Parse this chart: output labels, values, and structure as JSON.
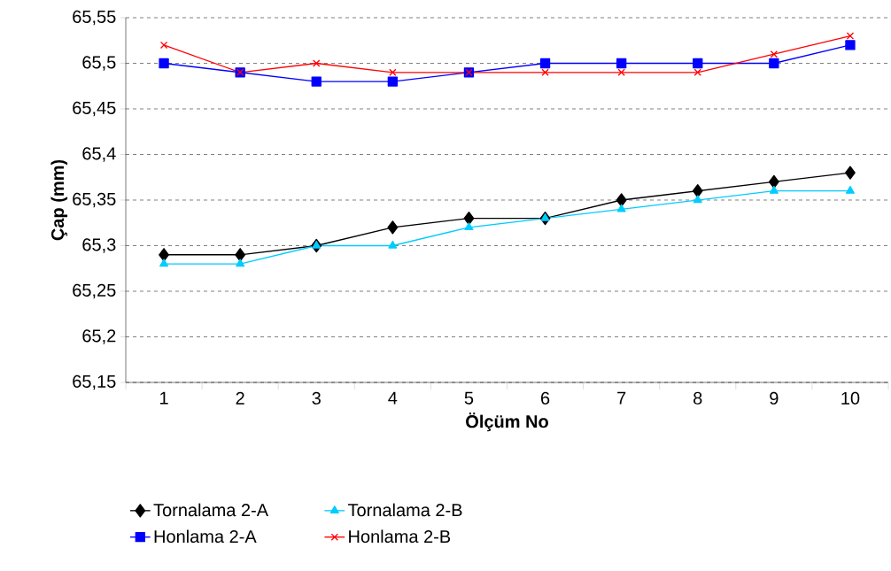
{
  "chart_data": {
    "type": "line",
    "xlabel": "Ölçüm No",
    "ylabel": "Çap (mm)",
    "categories": [
      "1",
      "2",
      "3",
      "4",
      "5",
      "6",
      "7",
      "8",
      "9",
      "10"
    ],
    "series": [
      {
        "name": "Tornalama 2-A",
        "color": "#000000",
        "marker": "diamond",
        "values": [
          65.29,
          65.29,
          65.3,
          65.32,
          65.33,
          65.33,
          65.35,
          65.36,
          65.37,
          65.38
        ]
      },
      {
        "name": "Tornalama 2-B",
        "color": "#00ccff",
        "marker": "triangle",
        "values": [
          65.28,
          65.28,
          65.3,
          65.3,
          65.32,
          65.33,
          65.34,
          65.35,
          65.36,
          65.36
        ]
      },
      {
        "name": "Honlama 2-A",
        "color": "#0000ff",
        "marker": "square",
        "values": [
          65.5,
          65.49,
          65.48,
          65.48,
          65.49,
          65.5,
          65.5,
          65.5,
          65.5,
          65.52
        ]
      },
      {
        "name": "Honlama 2-B",
        "color": "#ff0000",
        "marker": "cross",
        "values": [
          65.52,
          65.49,
          65.5,
          65.49,
          65.49,
          65.49,
          65.49,
          65.49,
          65.51,
          65.53
        ]
      }
    ],
    "ylim": [
      65.15,
      65.55
    ],
    "yticks": [
      {
        "value": 65.15,
        "label": "65,15"
      },
      {
        "value": 65.2,
        "label": "65,2"
      },
      {
        "value": 65.25,
        "label": "65,25"
      },
      {
        "value": 65.3,
        "label": "65,3"
      },
      {
        "value": 65.35,
        "label": "65,35"
      },
      {
        "value": 65.4,
        "label": "65,4"
      },
      {
        "value": 65.45,
        "label": "65,45"
      },
      {
        "value": 65.5,
        "label": "65,5"
      },
      {
        "value": 65.55,
        "label": "65,55"
      }
    ],
    "grid": "y",
    "legend": "bottom",
    "line_style": "solid"
  }
}
